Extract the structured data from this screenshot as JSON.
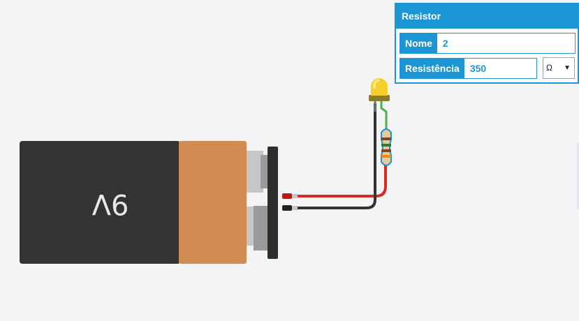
{
  "battery": {
    "label": "9V"
  },
  "inspector": {
    "title": "Resistor",
    "name_label": "Nome",
    "name_value": "2",
    "resistance_label": "Resistência",
    "resistance_value": "350",
    "unit_value": "Ω",
    "dropdown_icon": "triangle-down-icon"
  },
  "colors": {
    "accent": "#1b95d4",
    "battery_body": "#333333",
    "battery_label_band": "#d08c53",
    "wire_positive": "#d42a2a",
    "wire_negative": "#333333",
    "led": "#f6d02a",
    "canvas": "#f3f4f6"
  }
}
